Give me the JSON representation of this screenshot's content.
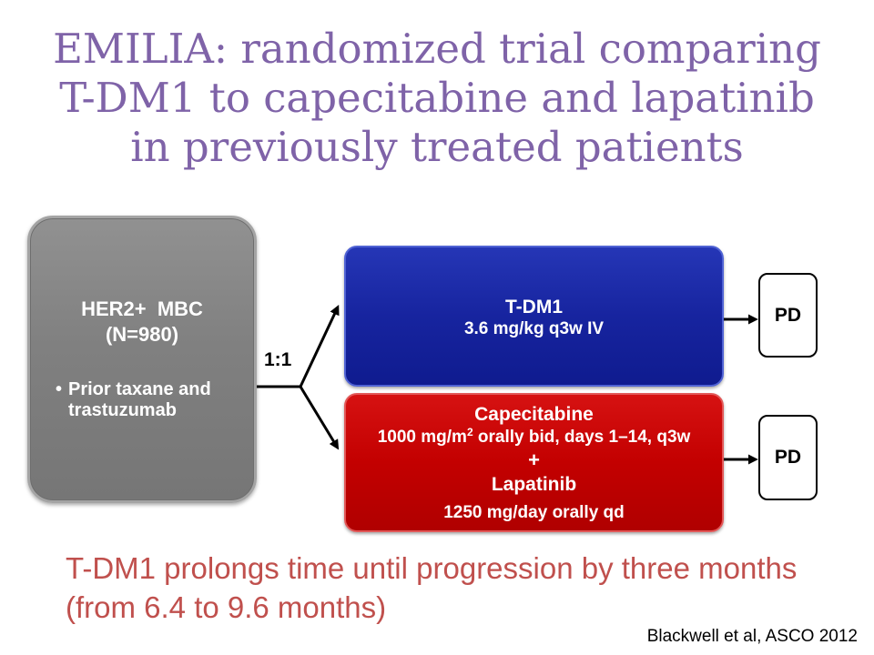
{
  "title": {
    "lines": [
      "EMILIA: randomized trial comparing",
      "T-DM1 to capecitabine and lapatinib",
      "in previously treated patients"
    ]
  },
  "population": {
    "label": "HER2+  MBC",
    "size": "(N=980)",
    "criteria": [
      "Prior taxane and trastuzumab"
    ]
  },
  "randomization": {
    "ratio": "1:1"
  },
  "arms": {
    "tdm1": {
      "drug": "T-DM1",
      "dose": "3.6 mg/kg q3w IV"
    },
    "capecitabine_lapatinib": {
      "drug1": "Capecitabine",
      "dose1_prefix": "1000 mg/m",
      "dose1_superscript": "2",
      "dose1_suffix": " orally bid, days 1–14, q3w",
      "combiner": "+",
      "drug2": "Lapatinib",
      "dose2": "1250 mg/day orally qd"
    }
  },
  "endpoints": [
    "PD",
    "PD"
  ],
  "conclusion": {
    "lines": [
      "T-DM1 prolongs time until progression by three months",
      "(from 6.4 to 9.6 months)"
    ]
  },
  "citation": "Blackwell et al, ASCO 2012",
  "colors": {
    "title": "#7f63a8",
    "conclusion": "#c0504d",
    "population_box": "#808080",
    "tdm1_box": "#17249f",
    "capecitabine_lapatinib_box": "#c30000",
    "arrows": "#000000"
  }
}
